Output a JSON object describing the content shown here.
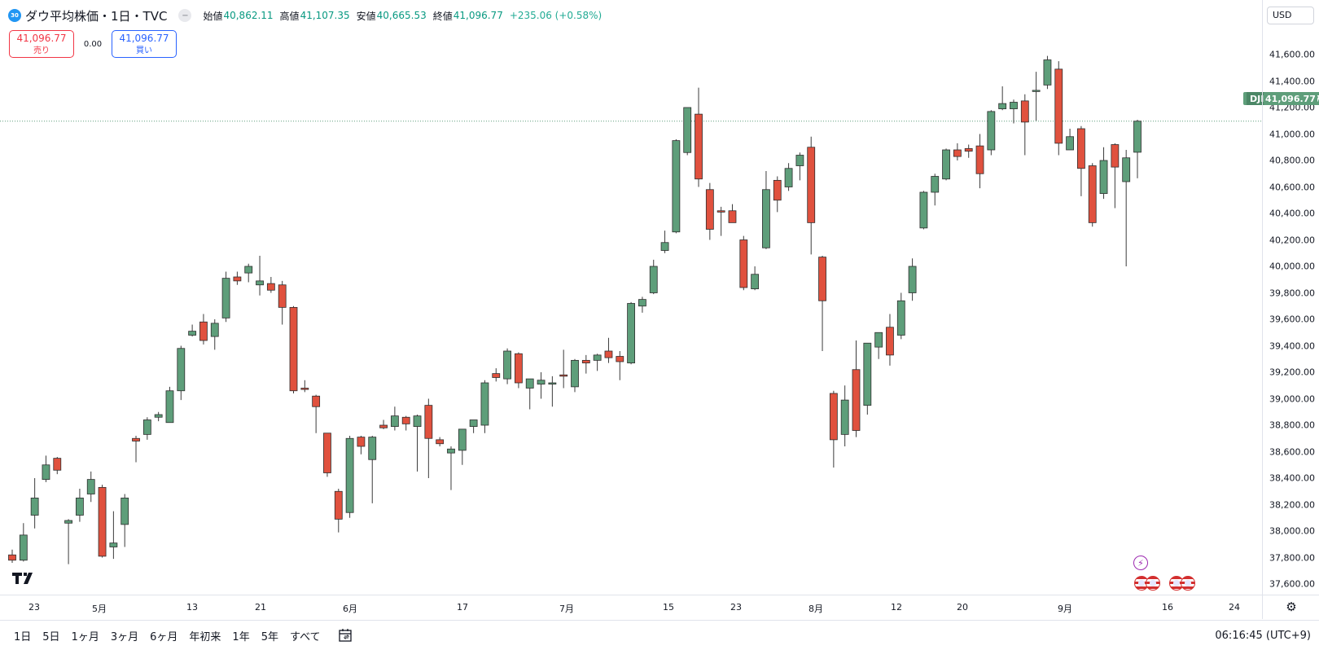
{
  "symbol": {
    "badge": "30",
    "title": "ダウ平均株価・1日・TVC",
    "ohlc": [
      {
        "label": "始値",
        "value": "40,862.11"
      },
      {
        "label": "高値",
        "value": "41,107.35"
      },
      {
        "label": "安値",
        "value": "40,665.53"
      },
      {
        "label": "終値",
        "value": "41,096.77"
      }
    ],
    "change": "+235.06 (+0.58%)"
  },
  "trade": {
    "sell_price": "41,096.77",
    "sell_label": "売り",
    "spread": "0.00",
    "buy_price": "41,096.77",
    "buy_label": "買い"
  },
  "currency": "USD",
  "last_price": {
    "symbol": "DJI",
    "value": "41,096.77"
  },
  "price_axis_labels": [
    "41,600.00",
    "41,400.00",
    "41,200.00",
    "41,000.00",
    "40,800.00",
    "40,600.00",
    "40,400.00",
    "40,200.00",
    "40,000.00",
    "39,800.00",
    "39,600.00",
    "39,400.00",
    "39,200.00",
    "39,000.00",
    "38,800.00",
    "38,600.00",
    "38,400.00",
    "38,200.00",
    "38,000.00",
    "37,800.00",
    "37,600.00"
  ],
  "time_axis_labels": [
    "23",
    "5月",
    "13",
    "21",
    "6月",
    "17",
    "7月",
    "15",
    "23",
    "8月",
    "12",
    "20",
    "9月",
    "16",
    "24"
  ],
  "bottom_bar": {
    "ranges": [
      "1日",
      "5日",
      "1ヶ月",
      "3ヶ月",
      "6ヶ月",
      "年初来",
      "1年",
      "5年",
      "すべて"
    ],
    "clock": "06:16:45 (UTC+9)"
  },
  "icons": {
    "logo": "tradingview-logo-icon",
    "visibility": "eye-toggle-icon",
    "calendar": "calendar-range-icon",
    "settings": "gear-icon",
    "events": [
      "lightning-event-icon",
      "us-flag-event-icon"
    ]
  },
  "colors": {
    "up": "#5e9e7a",
    "down": "#e0513e",
    "accent": "#2962ff",
    "sell": "#f23645"
  },
  "chart_data": {
    "type": "candlestick",
    "title": "ダウ平均株価・1日・TVC",
    "y_range": [
      37500,
      41700
    ],
    "candles": [
      {
        "o": 37820,
        "h": 37860,
        "l": 37760,
        "c": 37780
      },
      {
        "o": 37780,
        "h": 38060,
        "l": 37770,
        "c": 37970
      },
      {
        "o": 38120,
        "h": 38400,
        "l": 38020,
        "c": 38250
      },
      {
        "o": 38390,
        "h": 38570,
        "l": 38370,
        "c": 38500
      },
      {
        "o": 38550,
        "h": 38560,
        "l": 38430,
        "c": 38460
      },
      {
        "o": 38060,
        "h": 38090,
        "l": 37750,
        "c": 38080
      },
      {
        "o": 38120,
        "h": 38320,
        "l": 38070,
        "c": 38250
      },
      {
        "o": 38280,
        "h": 38450,
        "l": 38220,
        "c": 38390
      },
      {
        "o": 38330,
        "h": 38350,
        "l": 37800,
        "c": 37810
      },
      {
        "o": 37880,
        "h": 38150,
        "l": 37790,
        "c": 37910
      },
      {
        "o": 38050,
        "h": 38280,
        "l": 37880,
        "c": 38250
      },
      {
        "o": 38700,
        "h": 38720,
        "l": 38520,
        "c": 38680
      },
      {
        "o": 38730,
        "h": 38860,
        "l": 38690,
        "c": 38840
      },
      {
        "o": 38860,
        "h": 38900,
        "l": 38830,
        "c": 38880
      },
      {
        "o": 38820,
        "h": 39090,
        "l": 38820,
        "c": 39060
      },
      {
        "o": 39060,
        "h": 39400,
        "l": 38990,
        "c": 39380
      },
      {
        "o": 39480,
        "h": 39560,
        "l": 39470,
        "c": 39510
      },
      {
        "o": 39580,
        "h": 39640,
        "l": 39410,
        "c": 39440
      },
      {
        "o": 39470,
        "h": 39600,
        "l": 39370,
        "c": 39570
      },
      {
        "o": 39610,
        "h": 39960,
        "l": 39580,
        "c": 39910
      },
      {
        "o": 39920,
        "h": 39960,
        "l": 39860,
        "c": 39890
      },
      {
        "o": 39950,
        "h": 40020,
        "l": 39880,
        "c": 40000
      },
      {
        "o": 39860,
        "h": 40080,
        "l": 39780,
        "c": 39890
      },
      {
        "o": 39870,
        "h": 39920,
        "l": 39800,
        "c": 39820
      },
      {
        "o": 39860,
        "h": 39890,
        "l": 39560,
        "c": 39690
      },
      {
        "o": 39690,
        "h": 39700,
        "l": 39040,
        "c": 39060
      },
      {
        "o": 39080,
        "h": 39140,
        "l": 39050,
        "c": 39070
      },
      {
        "o": 39020,
        "h": 39030,
        "l": 38740,
        "c": 38940
      },
      {
        "o": 38740,
        "h": 38740,
        "l": 38410,
        "c": 38440
      },
      {
        "o": 38300,
        "h": 38320,
        "l": 37990,
        "c": 38090
      },
      {
        "o": 38140,
        "h": 38720,
        "l": 38100,
        "c": 38700
      },
      {
        "o": 38710,
        "h": 38720,
        "l": 38580,
        "c": 38640
      },
      {
        "o": 38540,
        "h": 38720,
        "l": 38210,
        "c": 38710
      },
      {
        "o": 38800,
        "h": 38840,
        "l": 38770,
        "c": 38780
      },
      {
        "o": 38790,
        "h": 38940,
        "l": 38760,
        "c": 38870
      },
      {
        "o": 38860,
        "h": 38870,
        "l": 38760,
        "c": 38810
      },
      {
        "o": 38790,
        "h": 38880,
        "l": 38450,
        "c": 38870
      },
      {
        "o": 38950,
        "h": 39000,
        "l": 38400,
        "c": 38700
      },
      {
        "o": 38690,
        "h": 38710,
        "l": 38640,
        "c": 38660
      },
      {
        "o": 38590,
        "h": 38640,
        "l": 38310,
        "c": 38620
      },
      {
        "o": 38610,
        "h": 38760,
        "l": 38500,
        "c": 38770
      },
      {
        "o": 38790,
        "h": 38820,
        "l": 38740,
        "c": 38840
      },
      {
        "o": 38800,
        "h": 39140,
        "l": 38740,
        "c": 39120
      },
      {
        "o": 39190,
        "h": 39230,
        "l": 39130,
        "c": 39160
      },
      {
        "o": 39150,
        "h": 39380,
        "l": 39110,
        "c": 39360
      },
      {
        "o": 39340,
        "h": 39350,
        "l": 39080,
        "c": 39120
      },
      {
        "o": 39080,
        "h": 39120,
        "l": 38920,
        "c": 39150
      },
      {
        "o": 39110,
        "h": 39200,
        "l": 39000,
        "c": 39140
      },
      {
        "o": 39110,
        "h": 39170,
        "l": 38940,
        "c": 39120
      },
      {
        "o": 39180,
        "h": 39370,
        "l": 39080,
        "c": 39170
      },
      {
        "o": 39090,
        "h": 39300,
        "l": 39050,
        "c": 39290
      },
      {
        "o": 39290,
        "h": 39330,
        "l": 39190,
        "c": 39270
      },
      {
        "o": 39290,
        "h": 39340,
        "l": 39210,
        "c": 39330
      },
      {
        "o": 39360,
        "h": 39460,
        "l": 39270,
        "c": 39310
      },
      {
        "o": 39320,
        "h": 39360,
        "l": 39140,
        "c": 39280
      },
      {
        "o": 39270,
        "h": 39730,
        "l": 39260,
        "c": 39720
      },
      {
        "o": 39700,
        "h": 39770,
        "l": 39650,
        "c": 39750
      },
      {
        "o": 39800,
        "h": 40050,
        "l": 39790,
        "c": 40000
      },
      {
        "o": 40120,
        "h": 40270,
        "l": 40100,
        "c": 40180
      },
      {
        "o": 40260,
        "h": 40960,
        "l": 40250,
        "c": 40950
      },
      {
        "o": 40860,
        "h": 41190,
        "l": 40840,
        "c": 41200
      },
      {
        "o": 41150,
        "h": 41350,
        "l": 40600,
        "c": 40660
      },
      {
        "o": 40580,
        "h": 40630,
        "l": 40200,
        "c": 40280
      },
      {
        "o": 40420,
        "h": 40450,
        "l": 40230,
        "c": 40410
      },
      {
        "o": 40420,
        "h": 40470,
        "l": 40340,
        "c": 40330
      },
      {
        "o": 40200,
        "h": 40230,
        "l": 39820,
        "c": 39840
      },
      {
        "o": 39830,
        "h": 40000,
        "l": 39820,
        "c": 39940
      },
      {
        "o": 40140,
        "h": 40720,
        "l": 40130,
        "c": 40580
      },
      {
        "o": 40650,
        "h": 40680,
        "l": 40410,
        "c": 40500
      },
      {
        "o": 40600,
        "h": 40780,
        "l": 40570,
        "c": 40740
      },
      {
        "o": 40760,
        "h": 40860,
        "l": 40650,
        "c": 40840
      },
      {
        "o": 40900,
        "h": 40980,
        "l": 40090,
        "c": 40330
      },
      {
        "o": 40070,
        "h": 40080,
        "l": 39360,
        "c": 39740
      },
      {
        "o": 39040,
        "h": 39060,
        "l": 38480,
        "c": 38690
      },
      {
        "o": 38730,
        "h": 39100,
        "l": 38640,
        "c": 38990
      },
      {
        "o": 39220,
        "h": 39440,
        "l": 38710,
        "c": 38760
      },
      {
        "o": 38950,
        "h": 39410,
        "l": 38880,
        "c": 39420
      },
      {
        "o": 39390,
        "h": 39500,
        "l": 39300,
        "c": 39500
      },
      {
        "o": 39540,
        "h": 39640,
        "l": 39250,
        "c": 39330
      },
      {
        "o": 39480,
        "h": 39800,
        "l": 39450,
        "c": 39740
      },
      {
        "o": 39800,
        "h": 40060,
        "l": 39740,
        "c": 40000
      },
      {
        "o": 40290,
        "h": 40570,
        "l": 40280,
        "c": 40560
      },
      {
        "o": 40560,
        "h": 40700,
        "l": 40460,
        "c": 40680
      },
      {
        "o": 40660,
        "h": 40890,
        "l": 40650,
        "c": 40880
      },
      {
        "o": 40880,
        "h": 40930,
        "l": 40800,
        "c": 40830
      },
      {
        "o": 40890,
        "h": 40920,
        "l": 40820,
        "c": 40870
      },
      {
        "o": 40910,
        "h": 41000,
        "l": 40590,
        "c": 40700
      },
      {
        "o": 40880,
        "h": 41180,
        "l": 40840,
        "c": 41170
      },
      {
        "o": 41190,
        "h": 41360,
        "l": 41180,
        "c": 41230
      },
      {
        "o": 41190,
        "h": 41260,
        "l": 41080,
        "c": 41240
      },
      {
        "o": 41250,
        "h": 41300,
        "l": 40840,
        "c": 41090
      },
      {
        "o": 41330,
        "h": 41470,
        "l": 41100,
        "c": 41330
      },
      {
        "o": 41370,
        "h": 41590,
        "l": 41340,
        "c": 41560
      },
      {
        "o": 41490,
        "h": 41550,
        "l": 40840,
        "c": 40930
      },
      {
        "o": 40880,
        "h": 41040,
        "l": 40880,
        "c": 40980
      },
      {
        "o": 41040,
        "h": 41060,
        "l": 40530,
        "c": 40740
      },
      {
        "o": 40760,
        "h": 40780,
        "l": 40300,
        "c": 40330
      },
      {
        "o": 40550,
        "h": 40900,
        "l": 40510,
        "c": 40800
      },
      {
        "o": 40920,
        "h": 40930,
        "l": 40440,
        "c": 40750
      },
      {
        "o": 40640,
        "h": 40880,
        "l": 40000,
        "c": 40820
      },
      {
        "o": 40862.11,
        "h": 41107.35,
        "l": 40665.53,
        "c": 41096.77
      }
    ]
  }
}
